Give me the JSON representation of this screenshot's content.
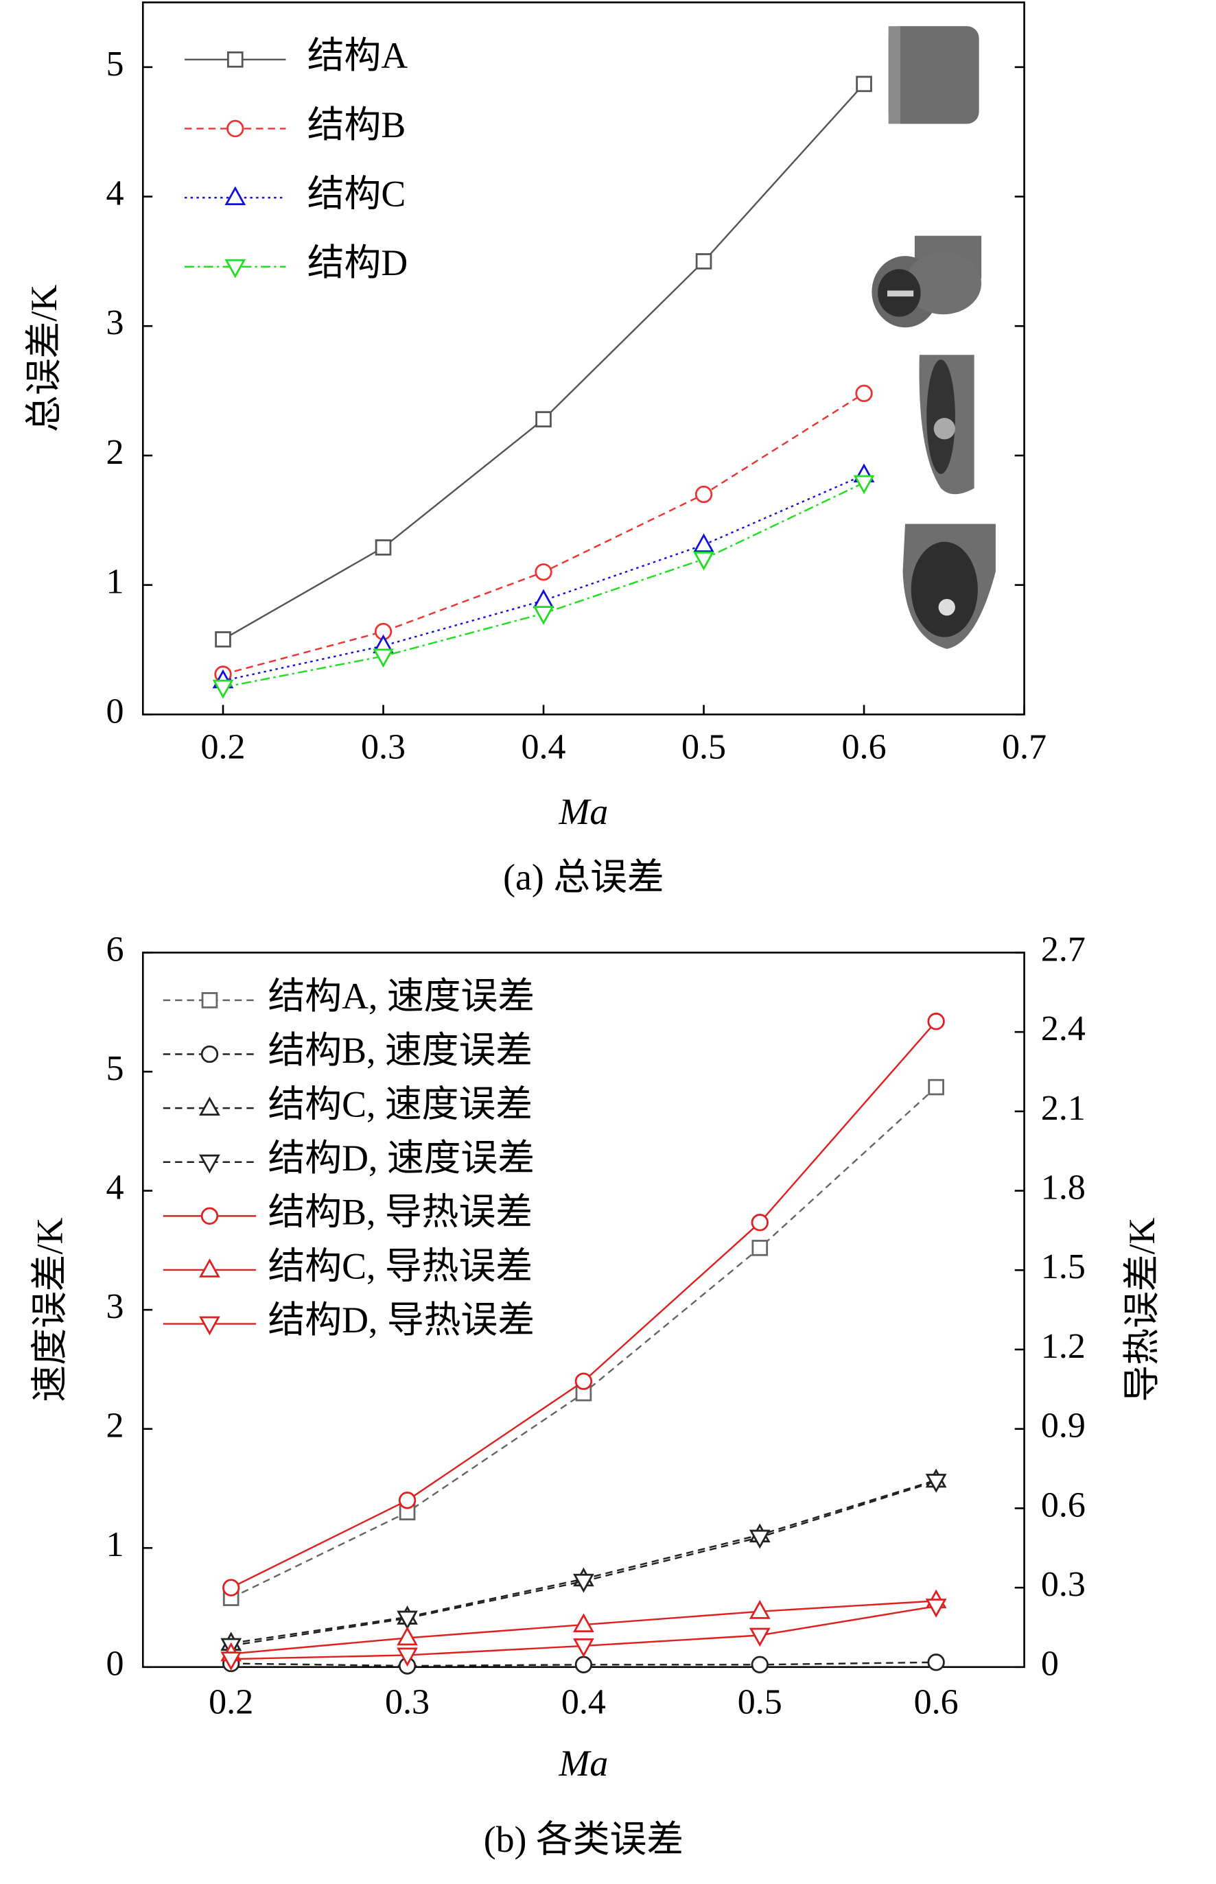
{
  "chart_data": [
    {
      "type": "line",
      "caption": "(a) 总误差",
      "xlabel": "Ma",
      "ylabel": "总误差/K",
      "x": [
        0.2,
        0.3,
        0.4,
        0.5,
        0.6
      ],
      "xlim": [
        0.15,
        0.7
      ],
      "xticks": [
        0.2,
        0.3,
        0.4,
        0.5,
        0.6,
        0.7
      ],
      "ylim": [
        0,
        5.5
      ],
      "yticks": [
        0,
        1,
        2,
        3,
        4,
        5
      ],
      "grid": false,
      "legend": "upper left",
      "series": [
        {
          "name": "结构A",
          "color": "#555555",
          "line_style": "solid",
          "marker": "square",
          "values": [
            0.58,
            1.29,
            2.28,
            3.5,
            4.87
          ]
        },
        {
          "name": "结构B",
          "color": "#ee3333",
          "line_style": "dashed",
          "marker": "circle",
          "values": [
            0.31,
            0.64,
            1.1,
            1.7,
            2.48
          ]
        },
        {
          "name": "结构C",
          "color": "#1111dd",
          "line_style": "dotted",
          "marker": "triangle",
          "values": [
            0.26,
            0.53,
            0.88,
            1.31,
            1.85
          ]
        },
        {
          "name": "结构D",
          "color": "#22dd22",
          "line_style": "dashdot",
          "marker": "triangle-down",
          "values": [
            0.21,
            0.45,
            0.78,
            1.2,
            1.79
          ]
        }
      ]
    },
    {
      "type": "line",
      "caption": "(b) 各类误差",
      "xlabel": "Ma",
      "ylabel": "速度误差/K",
      "y2label": "导热误差/K",
      "x": [
        0.2,
        0.3,
        0.4,
        0.5,
        0.6
      ],
      "xlim": [
        0.15,
        0.65
      ],
      "xticks": [
        0.2,
        0.3,
        0.4,
        0.5,
        0.6
      ],
      "ylim": [
        0,
        6
      ],
      "yticks": [
        0,
        1,
        2,
        3,
        4,
        5,
        6
      ],
      "y2lim": [
        0,
        2.7
      ],
      "y2ticks": [
        0,
        0.3,
        0.6,
        0.9,
        1.2,
        1.5,
        1.8,
        2.1,
        2.4,
        2.7
      ],
      "grid": false,
      "legend": "upper left",
      "series": [
        {
          "name": "结构A, 速度误差",
          "color": "#666666",
          "line_style": "dashed",
          "marker": "square",
          "values": [
            0.58,
            1.3,
            2.3,
            3.52,
            4.87
          ]
        },
        {
          "name": "结构B, 速度误差",
          "color": "#222222",
          "line_style": "dashed",
          "marker": "circle",
          "values": [
            0.03,
            0.01,
            0.02,
            0.02,
            0.04
          ]
        },
        {
          "name": "结构C, 速度误差",
          "color": "#222222",
          "line_style": "dashed",
          "marker": "triangle",
          "values": [
            0.2,
            0.42,
            0.74,
            1.11,
            1.57
          ]
        },
        {
          "name": "结构D, 速度误差",
          "color": "#222222",
          "line_style": "dashed",
          "marker": "triangle-down",
          "values": [
            0.18,
            0.41,
            0.72,
            1.09,
            1.56
          ]
        },
        {
          "name": "结构B, 导热误差",
          "color": "#e02020",
          "line_style": "solid",
          "marker": "circle",
          "axis": "y2",
          "values": [
            0.3,
            0.63,
            1.08,
            1.68,
            2.44
          ]
        },
        {
          "name": "结构C, 导热误差",
          "color": "#e02020",
          "line_style": "solid",
          "marker": "triangle",
          "axis": "y2",
          "values": [
            0.05,
            0.11,
            0.16,
            0.21,
            0.25
          ]
        },
        {
          "name": "结构D, 导热误差",
          "color": "#e02020",
          "line_style": "solid",
          "marker": "triangle-down",
          "axis": "y2",
          "values": [
            0.03,
            0.045,
            0.08,
            0.12,
            0.23
          ]
        }
      ]
    }
  ]
}
